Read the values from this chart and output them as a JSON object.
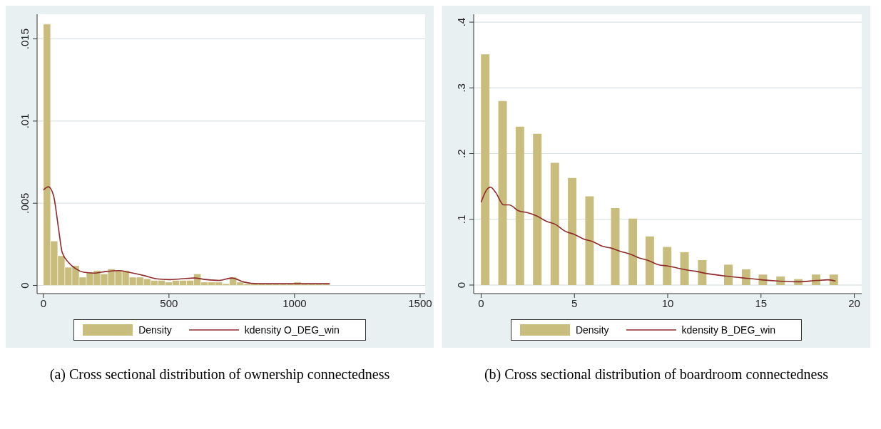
{
  "chart_data": [
    {
      "type": "histogram",
      "legend": "bottom",
      "grid": "y",
      "xlim": [
        -25,
        1520
      ],
      "xticks": [
        0,
        500,
        1000,
        1500
      ],
      "ylim": [
        -0.0005,
        0.0165
      ],
      "yticks": [
        0,
        {
          "value": 0.005,
          "label": ".005"
        },
        {
          "value": 0.01,
          "label": ".01"
        },
        {
          "value": 0.015,
          "label": ".015"
        }
      ],
      "annotations": [
        "(a) Cross sectional distribution of ownership connectedness"
      ],
      "series": [
        {
          "name": "Density",
          "color": "#c9bd7d",
          "bins": [
            0,
            28.5,
            57,
            85.5,
            114,
            142.5,
            171,
            199.5,
            228,
            256.5,
            285,
            313.5,
            342,
            370.5,
            399,
            427.5,
            456,
            484.5,
            513,
            541.5,
            570,
            598.5,
            627,
            655.5,
            684,
            712.5,
            741,
            769.5,
            798,
            826.5,
            855,
            883.5,
            912,
            940.5,
            969,
            997.5,
            1026,
            1054.5,
            1083,
            1111.5,
            1140
          ],
          "values": [
            0.0159,
            0.0027,
            0.0018,
            0.0011,
            0.0012,
            0.0005,
            0.0008,
            0.0009,
            0.0007,
            0.001,
            0.0009,
            0.0009,
            0.0005,
            0.0005,
            0.0004,
            0.0003,
            0.0003,
            0.0002,
            0.0003,
            0.0003,
            0.0003,
            0.0007,
            0.0002,
            0.0002,
            0.0002,
            0.0001,
            0.0005,
            0.0002,
            0.0001,
            0.0001,
            0.0001,
            0.0001,
            0.0001,
            0.0001,
            0.0001,
            0.0002,
            0.0001,
            0.0001,
            0.0001,
            0.0001
          ]
        },
        {
          "name": "kdensity O_DEG_win",
          "type": "line",
          "color": "#8e2b2b",
          "x": [
            0,
            20,
            40,
            60,
            75,
            100,
            130,
            160,
            200,
            250,
            300,
            340,
            400,
            450,
            500,
            550,
            600,
            650,
            700,
            750,
            800,
            850,
            900,
            950,
            1000,
            1050,
            1140
          ],
          "values": [
            0.0058,
            0.006,
            0.0055,
            0.0035,
            0.002,
            0.0014,
            0.001,
            0.0008,
            0.00075,
            0.00085,
            0.0009,
            0.0008,
            0.0006,
            0.0004,
            0.00035,
            0.0004,
            0.00045,
            0.00035,
            0.0003,
            0.00045,
            0.0002,
            0.0001,
            0.0001,
            0.0001,
            0.0001,
            0.0001,
            0.0001
          ]
        }
      ]
    },
    {
      "type": "bar",
      "legend": "bottom",
      "grid": "y",
      "xlim": [
        -0.4,
        20.4
      ],
      "xticks": [
        0,
        5,
        10,
        15,
        20
      ],
      "ylim": [
        -0.013,
        0.412
      ],
      "yticks": [
        0,
        {
          "value": 0.1,
          "label": ".1"
        },
        {
          "value": 0.2,
          "label": ".2"
        },
        {
          "value": 0.3,
          "label": ".3"
        },
        {
          "value": 0.4,
          "label": ".4"
        }
      ],
      "annotations": [
        "(b) Cross sectional distribution of boardroom connectedness"
      ],
      "series": [
        {
          "name": "Density",
          "color": "#c9bd7d",
          "x": [
            0.22,
            1.15,
            2.08,
            3.01,
            3.95,
            4.88,
            5.81,
            7.19,
            8.13,
            9.04,
            9.97,
            10.9,
            11.85,
            13.25,
            14.2,
            15.1,
            16.05,
            17,
            17.95,
            18.9
          ],
          "values": [
            0.351,
            0.28,
            0.241,
            0.23,
            0.186,
            0.163,
            0.135,
            0.117,
            0.101,
            0.074,
            0.058,
            0.05,
            0.038,
            0.031,
            0.024,
            0.016,
            0.013,
            0.009,
            0.016,
            0.016
          ]
        },
        {
          "name": "kdensity B_DEG_win",
          "type": "line",
          "color": "#8e2b2b",
          "x": [
            0,
            0.3,
            0.5,
            0.8,
            1.2,
            1.5,
            2,
            2.5,
            3,
            3.5,
            4,
            4.5,
            5,
            5.5,
            6,
            6.5,
            7,
            7.5,
            8,
            8.5,
            9,
            9.5,
            10,
            10.5,
            11,
            11.5,
            12,
            13,
            14,
            15,
            16,
            17,
            18,
            18.6,
            19
          ],
          "values": [
            0.126,
            0.145,
            0.149,
            0.14,
            0.122,
            0.122,
            0.113,
            0.11,
            0.105,
            0.097,
            0.092,
            0.082,
            0.077,
            0.07,
            0.066,
            0.059,
            0.056,
            0.051,
            0.047,
            0.041,
            0.037,
            0.031,
            0.029,
            0.026,
            0.023,
            0.021,
            0.018,
            0.014,
            0.011,
            0.008,
            0.006,
            0.005,
            0.007,
            0.008,
            0.006
          ]
        }
      ]
    }
  ]
}
